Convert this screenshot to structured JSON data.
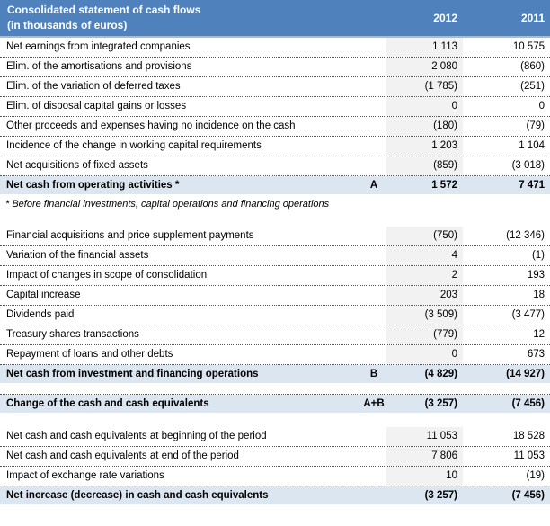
{
  "header": {
    "title": "Consolidated statement of cash flows",
    "subtitle": "(in thousands of euros)",
    "columns": [
      "2012",
      "2011"
    ]
  },
  "colors": {
    "header_bg": "#4F81BD",
    "header_border": "#A3BCDB",
    "total_bg": "#DCE6F1",
    "col2012_bg": "#F2F2F2"
  },
  "body": [
    {
      "type": "data",
      "label": "Net earnings from integrated companies",
      "letter": "",
      "values": [
        "1 113",
        "10 575"
      ]
    },
    {
      "type": "data",
      "label": "Elim. of the amortisations and provisions",
      "letter": "",
      "values": [
        "2 080",
        "(860)"
      ]
    },
    {
      "type": "data",
      "label": "Elim. of the variation of deferred taxes",
      "letter": "",
      "values": [
        "(1 785)",
        "(251)"
      ]
    },
    {
      "type": "data",
      "label": "Elim. of disposal capital gains or losses",
      "letter": "",
      "values": [
        "0",
        "0"
      ]
    },
    {
      "type": "data",
      "label": "Other proceeds and expenses having no incidence on the cash",
      "letter": "",
      "values": [
        "(180)",
        "(79)"
      ]
    },
    {
      "type": "data",
      "label": "Incidence of the change in working capital requirements",
      "letter": "",
      "values": [
        "1 203",
        "1 104"
      ]
    },
    {
      "type": "data",
      "label": "Net acquisitions of fixed assets",
      "letter": "",
      "values": [
        "(859)",
        "(3 018)"
      ]
    },
    {
      "type": "total",
      "label": "Net cash from operating activities *",
      "letter": "A",
      "values": [
        "1 572",
        "7 471"
      ]
    },
    {
      "type": "footnote",
      "text": "* Before financial investments, capital operations and financing operations"
    },
    {
      "type": "gap"
    },
    {
      "type": "data",
      "label": "Financial acquisitions and price supplement payments",
      "letter": "",
      "values": [
        "(750)",
        "(12 346)"
      ]
    },
    {
      "type": "data",
      "label": "Variation of the financial assets",
      "letter": "",
      "values": [
        "4",
        "(1)"
      ]
    },
    {
      "type": "data",
      "label": "Impact of changes in scope of consolidation",
      "letter": "",
      "values": [
        "2",
        "193"
      ]
    },
    {
      "type": "data",
      "label": "Capital increase",
      "letter": "",
      "values": [
        "203",
        "18"
      ]
    },
    {
      "type": "data",
      "label": "Dividends paid",
      "letter": "",
      "values": [
        "(3 509)",
        "(3 477)"
      ]
    },
    {
      "type": "data",
      "label": "Treasury shares transactions",
      "letter": "",
      "values": [
        "(779)",
        "12"
      ]
    },
    {
      "type": "data",
      "label": "Repayment of loans and other debts",
      "letter": "",
      "values": [
        "0",
        "673"
      ]
    },
    {
      "type": "total",
      "label": "Net cash from investment and financing operations",
      "letter": "B",
      "values": [
        "(4 829)",
        "(14 927)"
      ]
    },
    {
      "type": "gap"
    },
    {
      "type": "total",
      "label": "Change of the cash and cash equivalents",
      "letter": "A+B",
      "values": [
        "(3 257)",
        "(7 456)"
      ]
    },
    {
      "type": "gap"
    },
    {
      "type": "data",
      "label": "Net cash and cash equivalents at beginning of the period",
      "letter": "",
      "values": [
        "11 053",
        "18 528"
      ]
    },
    {
      "type": "data",
      "label": "Net cash and cash equivalents at end of the period",
      "letter": "",
      "values": [
        "7 806",
        "11 053"
      ]
    },
    {
      "type": "data",
      "label": "Impact of exchange rate variations",
      "letter": "",
      "values": [
        "10",
        "(19)"
      ]
    },
    {
      "type": "total",
      "label": "Net increase (decrease) in cash and cash equivalents",
      "letter": "",
      "values": [
        "(3 257)",
        "(7 456)"
      ]
    }
  ]
}
